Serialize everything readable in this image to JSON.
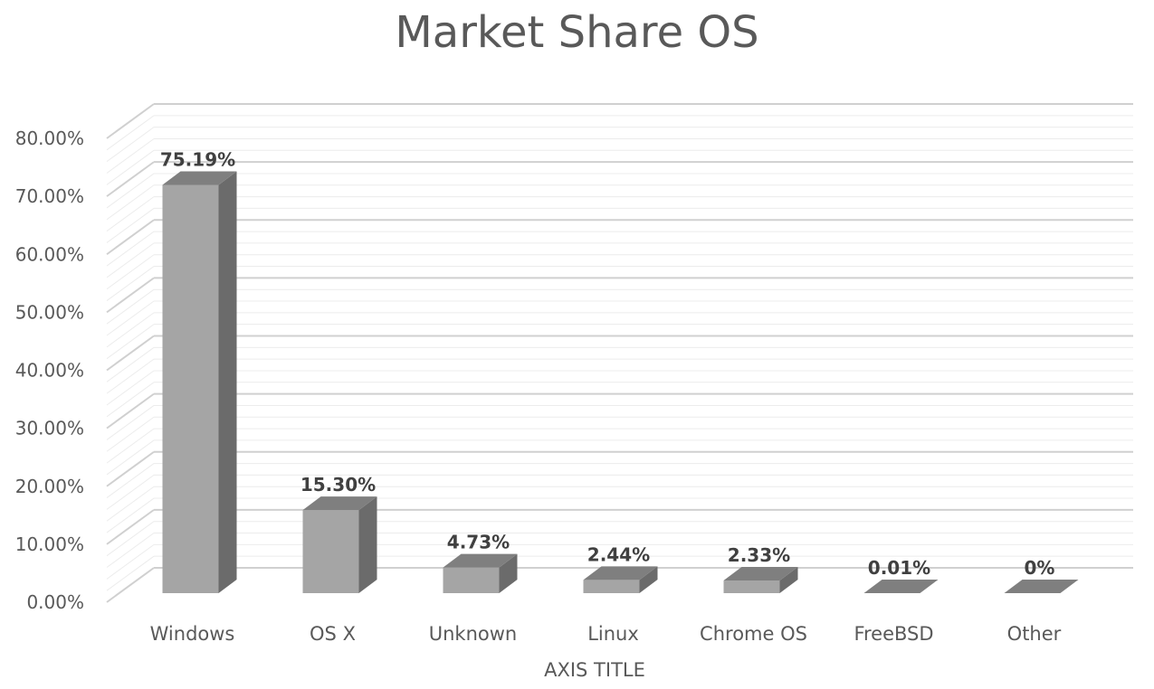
{
  "chart_data": {
    "type": "bar",
    "title": "Market Share OS",
    "xlabel": "AXIS TITLE",
    "ylabel": "",
    "categories": [
      "Windows",
      "OS X",
      "Unknown",
      "Linux",
      "Chrome OS",
      "FreeBSD",
      "Other"
    ],
    "values": [
      75.19,
      15.3,
      4.73,
      2.44,
      2.33,
      0.01,
      0
    ],
    "data_labels": [
      "75.19%",
      "15.30%",
      "4.73%",
      "2.44%",
      "2.33%",
      "0.01%",
      "0%"
    ],
    "ylim": [
      0,
      80
    ],
    "yticks": [
      "0.00%",
      "10.00%",
      "20.00%",
      "30.00%",
      "40.00%",
      "50.00%",
      "60.00%",
      "70.00%",
      "80.00%"
    ],
    "grid": true,
    "style": "3d-column",
    "colors": {
      "bar_front": "#a5a5a5",
      "bar_side": "#6b6b6b",
      "bar_top": "#7f7f7f",
      "grid": "#d9d9d9",
      "text": "#595959",
      "label": "#404040"
    }
  }
}
